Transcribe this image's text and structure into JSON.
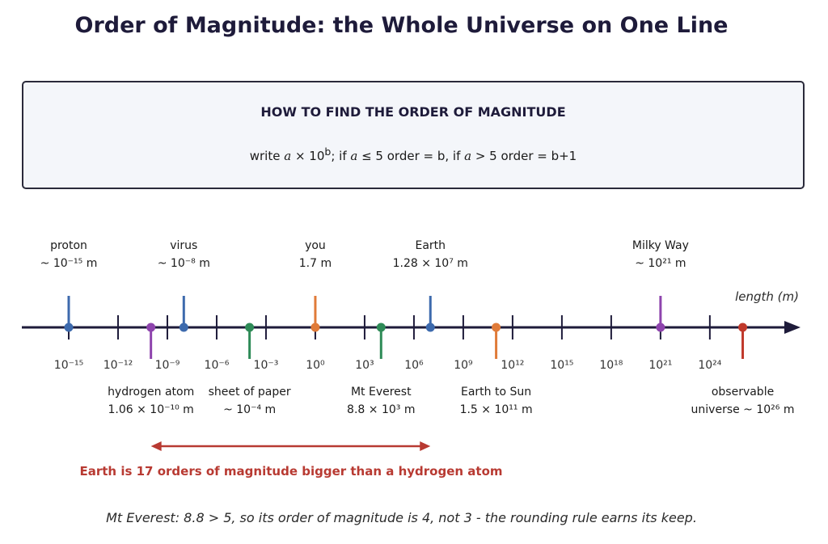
{
  "title": "Order of Magnitude: the Whole Universe on One Line",
  "rule_box": {
    "heading": "HOW TO FIND THE ORDER OF MAGNITUDE",
    "formula": "write a × 10^b;   if a ≤ 5 order = b,   if a > 5 order = b+1"
  },
  "axis": {
    "label": "length (m)",
    "exponent_range": [
      -15,
      28
    ],
    "ticks": [
      "10⁻¹⁵",
      "10⁻¹²",
      "10⁻⁹",
      "10⁻⁶",
      "10⁻³",
      "10⁰",
      "10³",
      "10⁶",
      "10⁹",
      "10¹²",
      "10¹⁵",
      "10¹⁸",
      "10²¹",
      "10²⁴"
    ]
  },
  "objects_above": [
    {
      "name": "proton",
      "value": "~ 10⁻¹⁵ m",
      "log10": -15,
      "color": "#3d6aad"
    },
    {
      "name": "virus",
      "value": "~ 10⁻⁸ m",
      "log10": -8,
      "color": "#3d6aad"
    },
    {
      "name": "you",
      "value": "1.7 m",
      "log10": 0,
      "color": "#e07b39"
    },
    {
      "name": "Earth",
      "value": "1.28 × 10⁷ m",
      "log10": 7,
      "color": "#3d6aad"
    },
    {
      "name": "Milky Way",
      "value": "~ 10²¹ m",
      "log10": 21,
      "color": "#8e44ad"
    }
  ],
  "objects_below": [
    {
      "name": "hydrogen atom",
      "value": "1.06 × 10⁻¹⁰ m",
      "log10": -10,
      "color": "#8e44ad"
    },
    {
      "name": "sheet of paper",
      "value": "~ 10⁻⁴ m",
      "log10": -4,
      "color": "#2e8b57"
    },
    {
      "name": "Mt Everest",
      "value": "8.8 × 10³ m",
      "log10": 4,
      "color": "#2e8b57"
    },
    {
      "name": "Earth to Sun",
      "value": "1.5 × 10¹¹ m",
      "log10": 11,
      "color": "#e07b39"
    },
    {
      "name": "observable universe   ~ 10²⁶ m",
      "value": "",
      "log10": 26,
      "color": "#c0392b"
    }
  ],
  "comparison": {
    "text": "Earth is 17 orders of magnitude bigger than a hydrogen atom",
    "from_log10": -10,
    "to_log10": 7,
    "color": "#b83a32"
  },
  "footnote": "Mt Everest: 8.8 > 5, so its order of magnitude is 4, not 3 - the rounding rule earns its keep."
}
